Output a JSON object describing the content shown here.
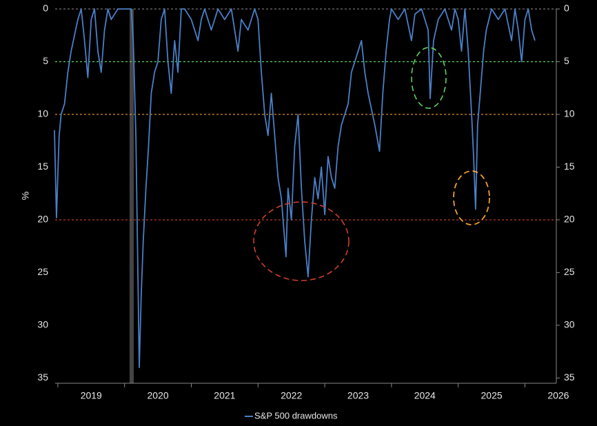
{
  "chart_data": {
    "type": "line",
    "y_label": "%",
    "inverted_y": true,
    "xlim": [
      2018.96,
      2026.47
    ],
    "xticks": [
      2019,
      2020,
      2021,
      2022,
      2023,
      2024,
      2025,
      2026
    ],
    "ylim": [
      0,
      35.5
    ],
    "yticks": [
      0,
      5,
      10,
      15,
      20,
      25,
      30,
      35
    ],
    "reference_lines": [
      {
        "value": 0,
        "color": "#777777"
      },
      {
        "value": 5,
        "color": "#5fd35f"
      },
      {
        "value": 10,
        "color": "#f0a030"
      },
      {
        "value": 20,
        "color": "#d0402a"
      }
    ],
    "legend": "bottom",
    "x": [
      2018.95,
      2018.98,
      2019.02,
      2019.05,
      2019.1,
      2019.15,
      2019.2,
      2019.25,
      2019.3,
      2019.35,
      2019.4,
      2019.45,
      2019.5,
      2019.55,
      2019.6,
      2019.65,
      2019.7,
      2019.75,
      2019.8,
      2019.9,
      2020.0,
      2020.1,
      2020.13,
      2020.17,
      2020.2,
      2020.22,
      2020.25,
      2020.28,
      2020.32,
      2020.36,
      2020.4,
      2020.45,
      2020.5,
      2020.55,
      2020.6,
      2020.65,
      2020.7,
      2020.75,
      2020.8,
      2020.85,
      2020.9,
      2021.0,
      2021.1,
      2021.15,
      2021.2,
      2021.3,
      2021.4,
      2021.5,
      2021.6,
      2021.7,
      2021.75,
      2021.85,
      2021.95,
      2022.0,
      2022.05,
      2022.1,
      2022.15,
      2022.2,
      2022.25,
      2022.3,
      2022.35,
      2022.42,
      2022.45,
      2022.5,
      2022.55,
      2022.6,
      2022.65,
      2022.7,
      2022.75,
      2022.8,
      2022.85,
      2022.9,
      2022.95,
      2023.0,
      2023.05,
      2023.1,
      2023.15,
      2023.2,
      2023.25,
      2023.35,
      2023.4,
      2023.45,
      2023.5,
      2023.55,
      2023.6,
      2023.65,
      2023.75,
      2023.82,
      2023.87,
      2023.92,
      2023.97,
      2024.0,
      2024.1,
      2024.2,
      2024.3,
      2024.35,
      2024.45,
      2024.55,
      2024.58,
      2024.63,
      2024.7,
      2024.8,
      2024.9,
      2024.95,
      2025.0,
      2025.05,
      2025.1,
      2025.15,
      2025.2,
      2025.23,
      2025.26,
      2025.29,
      2025.33,
      2025.38,
      2025.42,
      2025.5,
      2025.6,
      2025.7,
      2025.8,
      2025.85,
      2025.9,
      2025.95,
      2026.0,
      2026.05,
      2026.1,
      2026.15
    ],
    "series": [
      {
        "name": "S&P 500 drawdowns",
        "color": "#4a80c8",
        "values": [
          11.5,
          19.8,
          12,
          10,
          9,
          6,
          4,
          2.5,
          1,
          0,
          3,
          6.5,
          1,
          0,
          4,
          6,
          2,
          0,
          1,
          0,
          0,
          0,
          3,
          12,
          25,
          34,
          27,
          22,
          17,
          13,
          8,
          6,
          5,
          1,
          0,
          5,
          8,
          3,
          6,
          0,
          0,
          1,
          3,
          1,
          0,
          2,
          0,
          1,
          0,
          4,
          1,
          2,
          0,
          1,
          6,
          10,
          12,
          8,
          12,
          16,
          18,
          23.5,
          17,
          20,
          13,
          10,
          17,
          22,
          25.4,
          20,
          16,
          18,
          15,
          19.5,
          14,
          16,
          17,
          13,
          11,
          9,
          6,
          5,
          4,
          3,
          6,
          8,
          11,
          13.5,
          8,
          4,
          1,
          0,
          1,
          0,
          3,
          0.5,
          0,
          2,
          8.5,
          3,
          1,
          0,
          2,
          0,
          1,
          4,
          0,
          4,
          10,
          14,
          19,
          11,
          8,
          4,
          2,
          0,
          1,
          0,
          3,
          0,
          2,
          5,
          1,
          0,
          2,
          3
        ]
      }
    ]
  }
}
